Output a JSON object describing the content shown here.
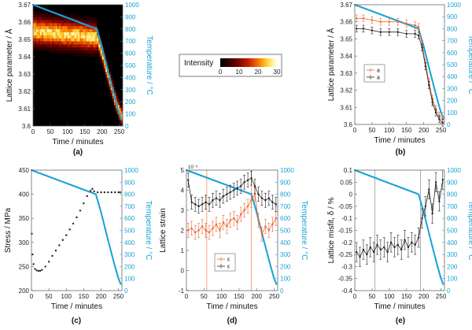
{
  "chart_data": [
    {
      "id": "a",
      "type": "heatmap",
      "panel_label": "(a)",
      "xlabel": "Time / minutes",
      "ylabel": "Lattice parameter / Å",
      "y2label": "Temperature / °C",
      "xlim": [
        0,
        260
      ],
      "ylim": [
        3.6,
        3.67
      ],
      "y2lim": [
        0,
        1000
      ],
      "xticks": [
        "0",
        "50",
        "100",
        "150",
        "200",
        "250"
      ],
      "yticks": [
        "3.6",
        "3.61",
        "3.62",
        "3.63",
        "3.64",
        "3.65",
        "3.66",
        "3.67"
      ],
      "y2ticks": [
        "0",
        "100",
        "200",
        "300",
        "400",
        "500",
        "600",
        "700",
        "800",
        "900",
        "1000"
      ],
      "ridge": [
        [
          0,
          3.655
        ],
        [
          50,
          3.654
        ],
        [
          100,
          3.653
        ],
        [
          150,
          3.652
        ],
        [
          185,
          3.651
        ],
        [
          200,
          3.642
        ],
        [
          220,
          3.628
        ],
        [
          240,
          3.614
        ],
        [
          255,
          3.606
        ]
      ],
      "temperature": [
        [
          0,
          1000
        ],
        [
          185,
          800
        ],
        [
          200,
          650
        ],
        [
          220,
          420
        ],
        [
          240,
          200
        ],
        [
          250,
          100
        ],
        [
          257,
          50
        ]
      ],
      "colorbar": {
        "label": "Intensity",
        "ticks": [
          "0",
          "10",
          "20",
          "30"
        ],
        "range": [
          0,
          30
        ]
      }
    },
    {
      "id": "b",
      "type": "line",
      "panel_label": "(b)",
      "xlabel": "Time / minutes",
      "ylabel": "Lattice parameter / Å",
      "y2label": "Temperature / °C",
      "xlim": [
        0,
        260
      ],
      "ylim": [
        3.6,
        3.67
      ],
      "y2lim": [
        0,
        1000
      ],
      "xticks": [
        "0",
        "50",
        "100",
        "150",
        "200",
        "250"
      ],
      "yticks": [
        "3.6",
        "3.61",
        "3.62",
        "3.63",
        "3.64",
        "3.65",
        "3.66",
        "3.67"
      ],
      "y2ticks": [
        "0",
        "100",
        "200",
        "300",
        "400",
        "500",
        "600",
        "700",
        "800",
        "900",
        "1000"
      ],
      "legend": [
        "a",
        "a"
      ],
      "series": [
        {
          "name": "a",
          "color": "#e8642c",
          "x": [
            5,
            25,
            50,
            75,
            100,
            125,
            150,
            175,
            185,
            195,
            205,
            215,
            225,
            235,
            245,
            255
          ],
          "y": [
            3.662,
            3.662,
            3.661,
            3.66,
            3.66,
            3.66,
            3.659,
            3.658,
            3.657,
            3.647,
            3.636,
            3.625,
            3.615,
            3.609,
            3.605,
            3.603
          ]
        },
        {
          "name": "a",
          "color": "#222222",
          "x": [
            5,
            25,
            50,
            75,
            100,
            125,
            150,
            175,
            185,
            195,
            205,
            215,
            225,
            235,
            245,
            255
          ],
          "y": [
            3.656,
            3.656,
            3.655,
            3.654,
            3.654,
            3.654,
            3.653,
            3.653,
            3.652,
            3.645,
            3.634,
            3.623,
            3.613,
            3.607,
            3.603,
            3.601
          ]
        }
      ],
      "temperature": [
        [
          0,
          1000
        ],
        [
          185,
          800
        ],
        [
          200,
          650
        ],
        [
          220,
          420
        ],
        [
          240,
          200
        ],
        [
          250,
          100
        ],
        [
          257,
          50
        ]
      ]
    },
    {
      "id": "c",
      "type": "scatter",
      "panel_label": "(c)",
      "xlabel": "Time / minutes",
      "ylabel": "Stress / MPa",
      "y2label": "Temperature / °C",
      "xlim": [
        0,
        260
      ],
      "ylim": [
        200,
        450
      ],
      "y2lim": [
        0,
        1000
      ],
      "xticks": [
        "0",
        "50",
        "100",
        "150",
        "200",
        "250"
      ],
      "yticks": [
        "200",
        "250",
        "300",
        "350",
        "400",
        "450"
      ],
      "y2ticks": [
        "0",
        "100",
        "200",
        "300",
        "400",
        "500",
        "600",
        "700",
        "800",
        "900",
        "1000"
      ],
      "series": [
        {
          "name": "",
          "color": "#222222",
          "x": [
            1,
            3,
            6,
            10,
            15,
            20,
            25,
            30,
            40,
            50,
            60,
            70,
            80,
            90,
            100,
            110,
            120,
            130,
            140,
            150,
            160,
            170,
            175,
            180,
            190,
            200,
            210,
            220,
            230,
            240,
            250,
            255
          ],
          "y": [
            318,
            275,
            255,
            245,
            242,
            241,
            241,
            243,
            250,
            260,
            272,
            283,
            294,
            305,
            315,
            327,
            339,
            352,
            366,
            381,
            396,
            407,
            411,
            406,
            404,
            404,
            404,
            404,
            404,
            404,
            404,
            404
          ]
        }
      ],
      "temperature": [
        [
          0,
          1000
        ],
        [
          185,
          800
        ],
        [
          200,
          650
        ],
        [
          220,
          420
        ],
        [
          240,
          200
        ],
        [
          250,
          100
        ],
        [
          257,
          50
        ]
      ]
    },
    {
      "id": "d",
      "type": "line",
      "panel_label": "(d)",
      "xlabel": "Time / minutes",
      "ylabel": "Lattice strain",
      "y2label": "Temperature / °C",
      "y_exponent": "10⁻³",
      "xlim": [
        0,
        260
      ],
      "ylim": [
        -1,
        5
      ],
      "y2lim": [
        0,
        1000
      ],
      "xticks": [
        "0",
        "50",
        "100",
        "150",
        "200",
        "250"
      ],
      "yticks": [
        "-1",
        "0",
        "1",
        "2",
        "3",
        "4",
        "5"
      ],
      "y2ticks": [
        "0",
        "100",
        "200",
        "300",
        "400",
        "500",
        "600",
        "700",
        "800",
        "900",
        "1000"
      ],
      "legend": [
        "ε",
        "ε"
      ],
      "series": [
        {
          "name": "ε",
          "color": "#e8642c",
          "x": [
            5,
            15,
            25,
            35,
            45,
            55,
            65,
            75,
            85,
            95,
            105,
            115,
            125,
            135,
            145,
            155,
            165,
            175,
            185,
            195,
            205,
            215,
            225,
            235,
            245,
            255
          ],
          "y": [
            2.0,
            2.1,
            1.9,
            2.0,
            2.2,
            2.0,
            1.9,
            2.1,
            2.3,
            2.0,
            2.4,
            2.2,
            2.5,
            2.6,
            2.4,
            2.8,
            3.0,
            3.2,
            3.5,
            3.8,
            2.5,
            1.8,
            2.2,
            2.0,
            2.3,
            2.6
          ]
        },
        {
          "name": "ε",
          "color": "#222222",
          "x": [
            5,
            15,
            25,
            35,
            45,
            55,
            65,
            75,
            85,
            95,
            105,
            115,
            125,
            135,
            145,
            155,
            165,
            175,
            185,
            195,
            205,
            215,
            225,
            235,
            245,
            255
          ],
          "y": [
            4.5,
            3.4,
            3.3,
            3.2,
            3.3,
            3.4,
            3.3,
            3.5,
            3.6,
            3.5,
            3.7,
            3.8,
            3.9,
            4.0,
            4.1,
            4.2,
            4.4,
            4.5,
            4.6,
            4.2,
            3.8,
            3.6,
            3.5,
            3.6,
            3.4,
            3.3
          ]
        }
      ],
      "temperature": [
        [
          0,
          1000
        ],
        [
          185,
          800
        ],
        [
          200,
          650
        ],
        [
          220,
          420
        ],
        [
          240,
          200
        ],
        [
          250,
          100
        ],
        [
          257,
          50
        ]
      ]
    },
    {
      "id": "e",
      "type": "line",
      "panel_label": "(e)",
      "xlabel": "Time / minutes",
      "ylabel": "Lattice misfit, δ / %",
      "y2label": "Temperature / °C",
      "xlim": [
        0,
        260
      ],
      "ylim": [
        -0.4,
        0.1
      ],
      "y2lim": [
        0,
        1000
      ],
      "xticks": [
        "0",
        "50",
        "100",
        "150",
        "200",
        "250"
      ],
      "yticks": [
        "-0.4",
        "-0.35",
        "-0.3",
        "-0.25",
        "-0.2",
        "-0.15",
        "-0.1",
        "-0.05",
        "0",
        "0.05",
        "0.1"
      ],
      "y2ticks": [
        "0",
        "100",
        "200",
        "300",
        "400",
        "500",
        "600",
        "700",
        "800",
        "900",
        "1000"
      ],
      "series": [
        {
          "name": "",
          "color": "#222222",
          "x": [
            5,
            15,
            25,
            35,
            45,
            55,
            65,
            75,
            85,
            95,
            105,
            115,
            125,
            135,
            145,
            155,
            165,
            175,
            185,
            195,
            205,
            215,
            225,
            235,
            245,
            255
          ],
          "y": [
            -0.24,
            -0.26,
            -0.23,
            -0.25,
            -0.22,
            -0.24,
            -0.21,
            -0.23,
            -0.22,
            -0.24,
            -0.2,
            -0.22,
            -0.21,
            -0.23,
            -0.19,
            -0.22,
            -0.2,
            -0.21,
            -0.18,
            -0.1,
            -0.05,
            0.02,
            -0.08,
            0.05,
            -0.03,
            0.06
          ]
        }
      ],
      "temperature": [
        [
          0,
          1000
        ],
        [
          185,
          800
        ],
        [
          200,
          650
        ],
        [
          220,
          420
        ],
        [
          240,
          200
        ],
        [
          250,
          100
        ],
        [
          257,
          50
        ]
      ]
    }
  ],
  "colors": {
    "temperature": "#1aa3d6",
    "series_orange": "#e8642c",
    "series_black": "#222222"
  }
}
